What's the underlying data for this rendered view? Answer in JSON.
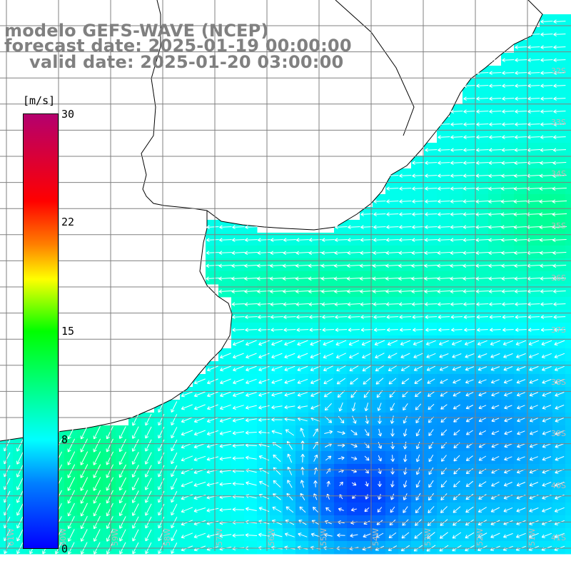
{
  "title": {
    "model": "modelo GEFS-WAVE (NCEP)",
    "forecast_date": "forecast date: 2025-01-19 00:00:00",
    "valid_date": "valid date: 2025-01-20 03:00:00"
  },
  "colorbar": {
    "unit": "[m/s]",
    "min": 0,
    "max": 30,
    "ticks": [
      "30",
      "22",
      "15",
      "8",
      "0"
    ],
    "tick_values": [
      30,
      22,
      15,
      8,
      0
    ],
    "colors": [
      "#0000ff",
      "#0080ff",
      "#00ffff",
      "#00ff00",
      "#ffff00",
      "#ff7f00",
      "#ff0000",
      "#b4006e"
    ]
  },
  "lat_labels": [
    "32S",
    "33S",
    "34S",
    "35S",
    "36S",
    "37S",
    "38S",
    "39S",
    "40S",
    "41S"
  ],
  "lon_labels": [
    "61W",
    "60W",
    "59W",
    "58W",
    "57W",
    "56W",
    "55W",
    "54W",
    "53W",
    "52W",
    "51W"
  ],
  "map_colors": {
    "land": "#ffffff",
    "coast": "#000000",
    "grid": "#808080",
    "arrows": "#ffffff"
  }
}
